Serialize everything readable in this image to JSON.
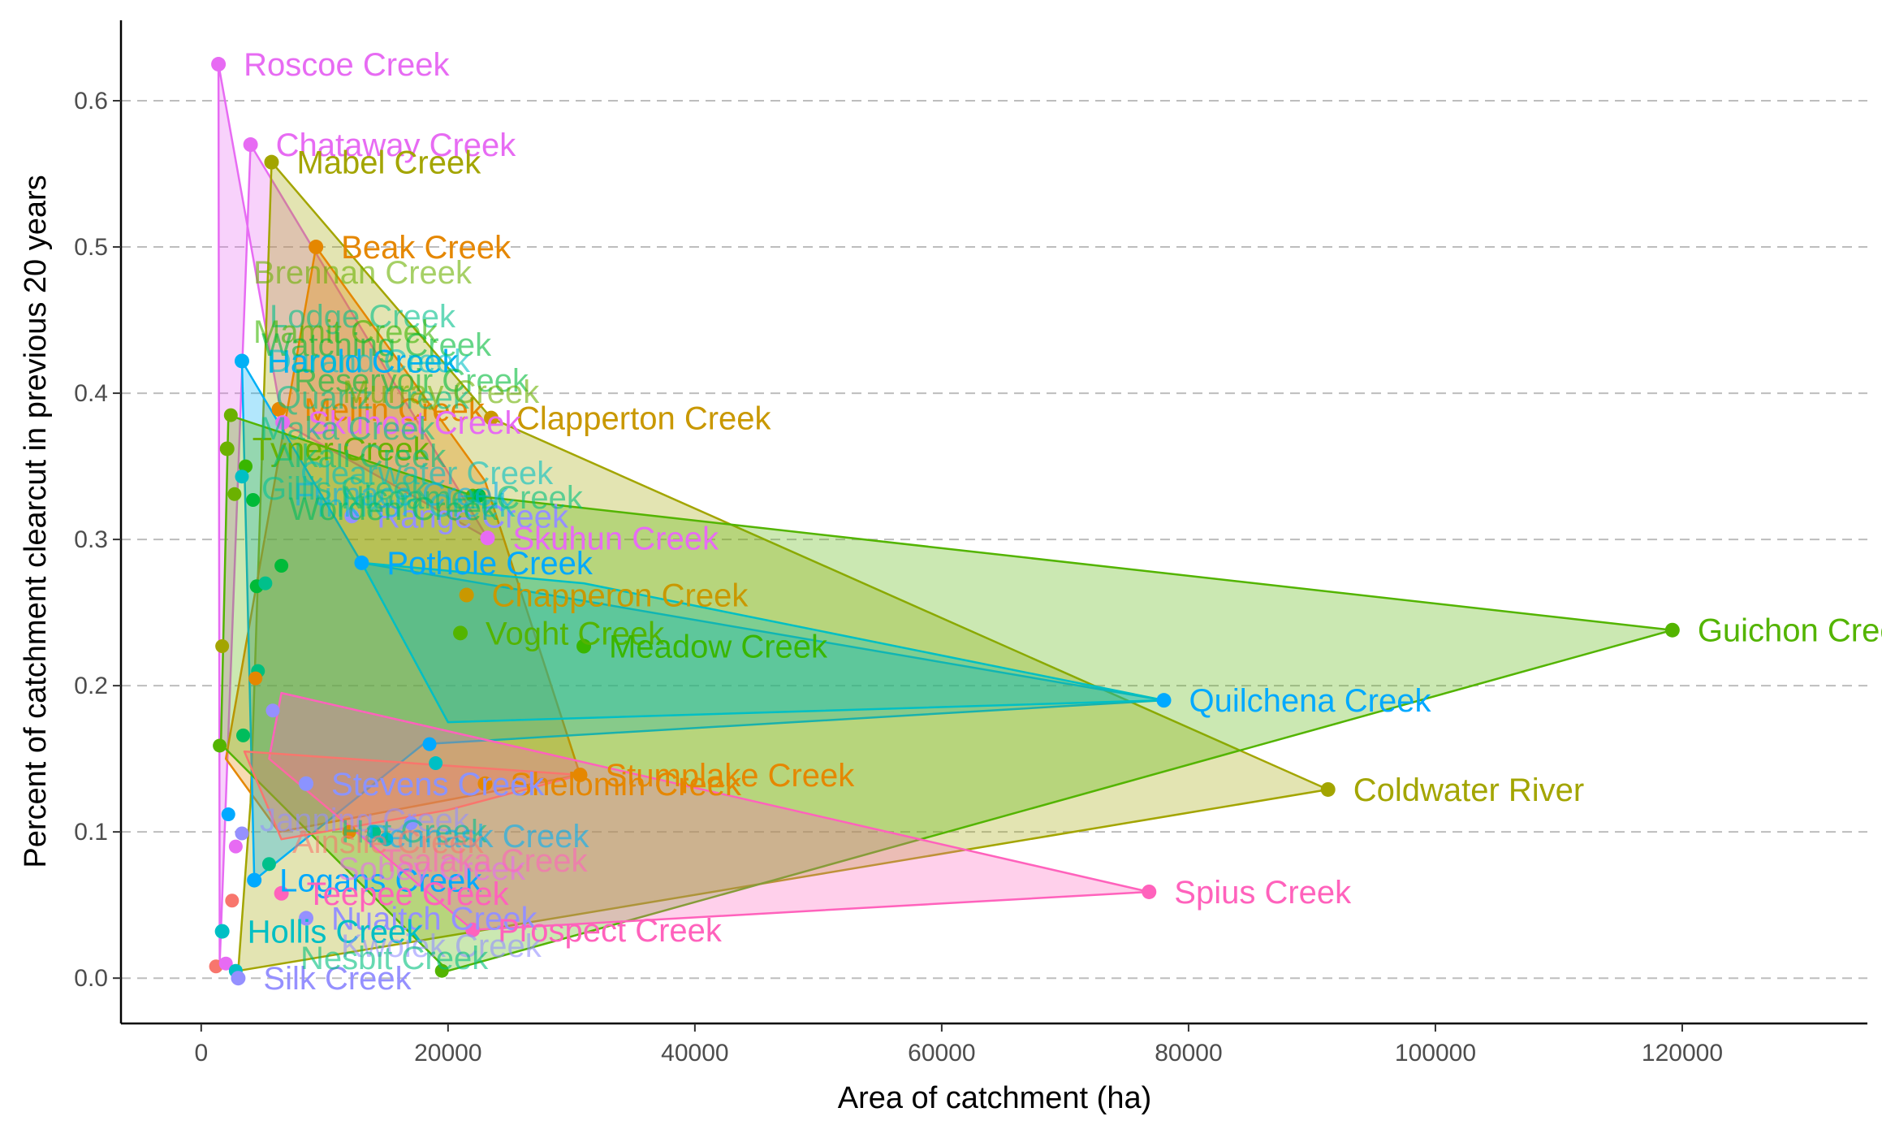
{
  "chart_data": {
    "type": "scatter",
    "title": "",
    "xlabel": "Area of catchment (ha)",
    "ylabel": "Percent of catchment clearcut in previous 20 years",
    "xlim": [
      -6500,
      135000
    ],
    "ylim": [
      -0.031,
      0.655
    ],
    "x_ticks": [
      0,
      20000,
      40000,
      60000,
      80000,
      100000,
      120000
    ],
    "x_tick_labels": [
      "0",
      "20000",
      "40000",
      "60000",
      "80000",
      "100000",
      "120000"
    ],
    "y_ticks": [
      0.0,
      0.1,
      0.2,
      0.3,
      0.4,
      0.5,
      0.6
    ],
    "y_tick_labels": [
      "0.0",
      "0.1",
      "0.2",
      "0.3",
      "0.4",
      "0.5",
      "0.6"
    ],
    "grid": "horizontal dashed",
    "legend": "none",
    "labeled_points": [
      {
        "name": "Roscoe Creek",
        "x": 1400,
        "y": 0.625,
        "color": "#E76BF3"
      },
      {
        "name": "Chataway Creek",
        "x": 4000,
        "y": 0.57,
        "color": "#E76BF3"
      },
      {
        "name": "Mabel Creek",
        "x": 5700,
        "y": 0.558,
        "color": "#A3A500"
      },
      {
        "name": "Beak Creek",
        "x": 9300,
        "y": 0.5,
        "color": "#E58700"
      },
      {
        "name": "Harold Creek",
        "x": 3300,
        "y": 0.422,
        "color": "#00B0F6"
      },
      {
        "name": "Mellin Creek",
        "x": 6300,
        "y": 0.389,
        "color": "#E58700"
      },
      {
        "name": "Clapperton Creek",
        "x": 23500,
        "y": 0.383,
        "color": "#C99800"
      },
      {
        "name": "Skuhost Creek",
        "x": 6600,
        "y": 0.38,
        "color": "#E76BF3"
      },
      {
        "name": "Tyner Creek",
        "x": 2100,
        "y": 0.362,
        "color": "#6BB100"
      },
      {
        "name": "Range Creek",
        "x": 12200,
        "y": 0.316,
        "color": "#9590FF"
      },
      {
        "name": "Skuhun Creek",
        "x": 23200,
        "y": 0.301,
        "color": "#E76BF3"
      },
      {
        "name": "Pothole Creek",
        "x": 13000,
        "y": 0.284,
        "color": "#00A9FF"
      },
      {
        "name": "Chapperon Creek",
        "x": 21500,
        "y": 0.262,
        "color": "#C99800"
      },
      {
        "name": "Voght Creek",
        "x": 21000,
        "y": 0.236,
        "color": "#53B400"
      },
      {
        "name": "Meadow Creek",
        "x": 31000,
        "y": 0.227,
        "color": "#39B600"
      },
      {
        "name": "Guichon Creek",
        "x": 119200,
        "y": 0.238,
        "color": "#53B400"
      },
      {
        "name": "Quilchena Creek",
        "x": 78000,
        "y": 0.19,
        "color": "#00A9FF"
      },
      {
        "name": "Stumplake Creek",
        "x": 30700,
        "y": 0.139,
        "color": "#E58700"
      },
      {
        "name": "Shelomin Creek",
        "x": 23000,
        "y": 0.133,
        "color": "#E58700"
      },
      {
        "name": "Stevens Creek",
        "x": 8500,
        "y": 0.133,
        "color": "#8B93FF"
      },
      {
        "name": "Coldwater River",
        "x": 91300,
        "y": 0.129,
        "color": "#A3A500"
      },
      {
        "name": "Logans Creek",
        "x": 4300,
        "y": 0.067,
        "color": "#00A9FF"
      },
      {
        "name": "Spius Creek",
        "x": 76800,
        "y": 0.059,
        "color": "#FF62BC"
      },
      {
        "name": "Teepee Creek",
        "x": 6500,
        "y": 0.058,
        "color": "#FF62BC"
      },
      {
        "name": "Nuaitch Creek",
        "x": 8500,
        "y": 0.041,
        "color": "#9590FF"
      },
      {
        "name": "Hollis Creek",
        "x": 1700,
        "y": 0.032,
        "color": "#00BFC4"
      },
      {
        "name": "Prospect Creek",
        "x": 22000,
        "y": 0.033,
        "color": "#FF62BC"
      },
      {
        "name": "Silk Creek",
        "x": 3000,
        "y": 0.0,
        "color": "#9590FF"
      }
    ],
    "crowded_labels": [
      {
        "text": "Brennan Creek",
        "color": "#6BB100"
      },
      {
        "text": "Lodge Creek",
        "color": "#00C08B"
      },
      {
        "text": "Mamit Creek",
        "color": "#39B600"
      },
      {
        "text": "Watching Creek",
        "color": "#00BA38"
      },
      {
        "text": "Durand Creek",
        "color": "#00BFC4"
      },
      {
        "text": "Reservoir Creek",
        "color": "#00BA38"
      },
      {
        "text": "Quartz Creek",
        "color": "#00C08B"
      },
      {
        "text": "Murray Creek",
        "color": "#6BB100"
      },
      {
        "text": "Maka Creek",
        "color": "#00C08B"
      },
      {
        "text": "Alkali Creek",
        "color": "#00BF7D"
      },
      {
        "text": "Clearwater Creek",
        "color": "#00BFC4"
      },
      {
        "text": "Furnace Creek",
        "color": "#00B0F6"
      },
      {
        "text": "Inkikuh Creek",
        "color": "#00BCD8"
      },
      {
        "text": "Gillis Creek",
        "color": "#00C19A"
      },
      {
        "text": "Worden Creek",
        "color": "#00BD5C"
      },
      {
        "text": "Nicoamen Creek",
        "color": "#00BF7D"
      },
      {
        "text": "Janning Creek",
        "color": "#9590FF"
      },
      {
        "text": "Hat Creek",
        "color": "#00C08B"
      },
      {
        "text": "Pennask Creek",
        "color": "#00B0F6"
      },
      {
        "text": "Sobey Creek",
        "color": "#E76BF3"
      },
      {
        "text": "Tsalaka Creek",
        "color": "#FF62BC"
      },
      {
        "text": "Ainslie Creek",
        "color": "#F8766D"
      },
      {
        "text": "Kwoiek Creek",
        "color": "#9590FF"
      },
      {
        "text": "Nesbit Creek",
        "color": "#00BF7D"
      }
    ],
    "hulls": [
      {
        "color": "#E76BF3",
        "points": [
          [
            1400,
            0.625
          ],
          [
            1500,
            0.01
          ],
          [
            4000,
            0.57
          ],
          [
            23200,
            0.301
          ],
          [
            6600,
            0.38
          ]
        ]
      },
      {
        "color": "#A3A500",
        "points": [
          [
            5700,
            0.558
          ],
          [
            23500,
            0.383
          ],
          [
            91300,
            0.129
          ],
          [
            3000,
            0.005
          ],
          [
            4000,
            0.12
          ]
        ]
      },
      {
        "color": "#E58700",
        "points": [
          [
            9300,
            0.5
          ],
          [
            23000,
            0.34
          ],
          [
            30700,
            0.139
          ],
          [
            6300,
            0.1
          ],
          [
            2000,
            0.15
          ]
        ]
      },
      {
        "color": "#00B0F6",
        "points": [
          [
            3300,
            0.422
          ],
          [
            13000,
            0.284
          ],
          [
            78000,
            0.19
          ],
          [
            18000,
            0.16
          ],
          [
            4300,
            0.067
          ]
        ]
      },
      {
        "color": "#53B400",
        "points": [
          [
            2200,
            0.385
          ],
          [
            22000,
            0.33
          ],
          [
            119200,
            0.238
          ],
          [
            20000,
            0.005
          ],
          [
            1600,
            0.16
          ]
        ]
      },
      {
        "color": "#00BFC4",
        "points": [
          [
            13000,
            0.284
          ],
          [
            31000,
            0.27
          ],
          [
            78000,
            0.19
          ],
          [
            20000,
            0.175
          ]
        ]
      },
      {
        "color": "#FF62BC",
        "points": [
          [
            6500,
            0.195
          ],
          [
            76800,
            0.059
          ],
          [
            22000,
            0.033
          ],
          [
            5500,
            0.15
          ]
        ]
      },
      {
        "color": "#F8766D",
        "points": [
          [
            3500,
            0.155
          ],
          [
            30700,
            0.139
          ],
          [
            20000,
            0.115
          ],
          [
            6500,
            0.095
          ]
        ]
      }
    ],
    "background_points": [
      {
        "x": 2400,
        "y": 0.385,
        "color": "#6BB100"
      },
      {
        "x": 3600,
        "y": 0.35,
        "color": "#39B600"
      },
      {
        "x": 3300,
        "y": 0.343,
        "color": "#00BFC4"
      },
      {
        "x": 2700,
        "y": 0.331,
        "color": "#6BB100"
      },
      {
        "x": 4200,
        "y": 0.327,
        "color": "#00BA38"
      },
      {
        "x": 6500,
        "y": 0.282,
        "color": "#00BA38"
      },
      {
        "x": 4500,
        "y": 0.268,
        "color": "#00BA38"
      },
      {
        "x": 5200,
        "y": 0.27,
        "color": "#00C08B"
      },
      {
        "x": 1700,
        "y": 0.227,
        "color": "#A3A500"
      },
      {
        "x": 4600,
        "y": 0.21,
        "color": "#00BF7D"
      },
      {
        "x": 4400,
        "y": 0.205,
        "color": "#E58700"
      },
      {
        "x": 5800,
        "y": 0.183,
        "color": "#9590FF"
      },
      {
        "x": 1500,
        "y": 0.159,
        "color": "#53B400"
      },
      {
        "x": 3400,
        "y": 0.166,
        "color": "#00BD5C"
      },
      {
        "x": 2200,
        "y": 0.112,
        "color": "#00A9FF"
      },
      {
        "x": 3300,
        "y": 0.099,
        "color": "#9590FF"
      },
      {
        "x": 2800,
        "y": 0.09,
        "color": "#E76BF3"
      },
      {
        "x": 5500,
        "y": 0.078,
        "color": "#00C08B"
      },
      {
        "x": 2500,
        "y": 0.053,
        "color": "#F8766D"
      },
      {
        "x": 1200,
        "y": 0.008,
        "color": "#F8766D"
      },
      {
        "x": 2000,
        "y": 0.01,
        "color": "#E76BF3"
      },
      {
        "x": 2800,
        "y": 0.005,
        "color": "#00BFC4"
      },
      {
        "x": 19500,
        "y": 0.005,
        "color": "#53B400"
      },
      {
        "x": 19000,
        "y": 0.147,
        "color": "#00BFC4"
      },
      {
        "x": 18500,
        "y": 0.16,
        "color": "#00A9FF"
      },
      {
        "x": 22000,
        "y": 0.33,
        "color": "#53B400"
      },
      {
        "x": 22500,
        "y": 0.33,
        "color": "#00BA38"
      },
      {
        "x": 17000,
        "y": 0.106,
        "color": "#8B93FF"
      },
      {
        "x": 14000,
        "y": 0.1,
        "color": "#00C08B"
      },
      {
        "x": 12000,
        "y": 0.1,
        "color": "#E58700"
      },
      {
        "x": 15000,
        "y": 0.095,
        "color": "#00BFC4"
      }
    ]
  }
}
